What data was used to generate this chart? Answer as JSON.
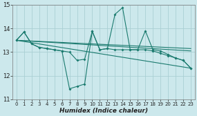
{
  "background_color": "#cce8ec",
  "grid_color": "#aacfd4",
  "line_color": "#1a7a6e",
  "xlabel": "Humidex (Indice chaleur)",
  "xlim": [
    -0.5,
    23.5
  ],
  "ylim": [
    11,
    15
  ],
  "yticks": [
    11,
    12,
    13,
    14,
    15
  ],
  "xticks": [
    0,
    1,
    2,
    3,
    4,
    5,
    6,
    7,
    8,
    9,
    10,
    11,
    12,
    13,
    14,
    15,
    16,
    17,
    18,
    19,
    20,
    21,
    22,
    23
  ],
  "series1_x": [
    0,
    1,
    2,
    3,
    4,
    5,
    6,
    7,
    8,
    9,
    10,
    11,
    12,
    13,
    14,
    15,
    16,
    17,
    18,
    19,
    20,
    21,
    22,
    23
  ],
  "series1_y": [
    13.5,
    13.85,
    13.35,
    13.2,
    13.15,
    13.1,
    13.05,
    13.0,
    12.65,
    12.7,
    13.88,
    13.1,
    13.15,
    14.6,
    14.88,
    13.1,
    13.1,
    13.9,
    13.1,
    13.05,
    12.9,
    12.75,
    12.65,
    12.32
  ],
  "series2_x": [
    0,
    1,
    2,
    3,
    4,
    5,
    6,
    7,
    8,
    9,
    10,
    11,
    12,
    13,
    14,
    15,
    16,
    17,
    18,
    19,
    20,
    21,
    22,
    23
  ],
  "series2_y": [
    13.5,
    13.85,
    13.35,
    13.2,
    13.15,
    13.1,
    13.05,
    11.45,
    11.55,
    11.65,
    13.88,
    13.1,
    13.15,
    13.1,
    13.1,
    13.1,
    13.1,
    13.1,
    13.05,
    12.95,
    12.85,
    12.75,
    12.65,
    12.32
  ],
  "trend1_x": [
    0,
    23
  ],
  "trend1_y": [
    13.5,
    13.15
  ],
  "trend2_x": [
    0,
    23
  ],
  "trend2_y": [
    13.5,
    13.05
  ],
  "trend3_x": [
    0,
    23
  ],
  "trend3_y": [
    13.5,
    12.32
  ]
}
